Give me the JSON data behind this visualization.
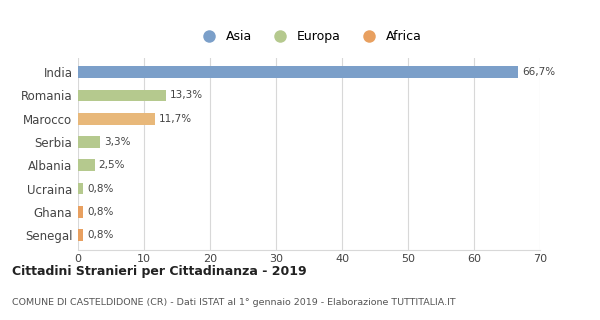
{
  "categories": [
    "India",
    "Romania",
    "Marocco",
    "Serbia",
    "Albania",
    "Ucraina",
    "Ghana",
    "Senegal"
  ],
  "values": [
    66.7,
    13.3,
    11.7,
    3.3,
    2.5,
    0.8,
    0.8,
    0.8
  ],
  "labels": [
    "66,7%",
    "13,3%",
    "11,7%",
    "3,3%",
    "2,5%",
    "0,8%",
    "0,8%",
    "0,8%"
  ],
  "colors": [
    "#7b9fc9",
    "#b5c98e",
    "#e8b87a",
    "#b5c98e",
    "#b5c98e",
    "#b5c98e",
    "#e8a060",
    "#e8a060"
  ],
  "legend_labels": [
    "Asia",
    "Europa",
    "Africa"
  ],
  "legend_colors": [
    "#7b9fc9",
    "#b5c98e",
    "#e8a060"
  ],
  "title": "Cittadini Stranieri per Cittadinanza - 2019",
  "subtitle": "COMUNE DI CASTELDIDONE (CR) - Dati ISTAT al 1° gennaio 2019 - Elaborazione TUTTITALIA.IT",
  "xlim": [
    0,
    70
  ],
  "xticks": [
    0,
    10,
    20,
    30,
    40,
    50,
    60,
    70
  ],
  "bg_color": "#ffffff",
  "grid_color": "#d8d8d8",
  "bar_height": 0.5
}
